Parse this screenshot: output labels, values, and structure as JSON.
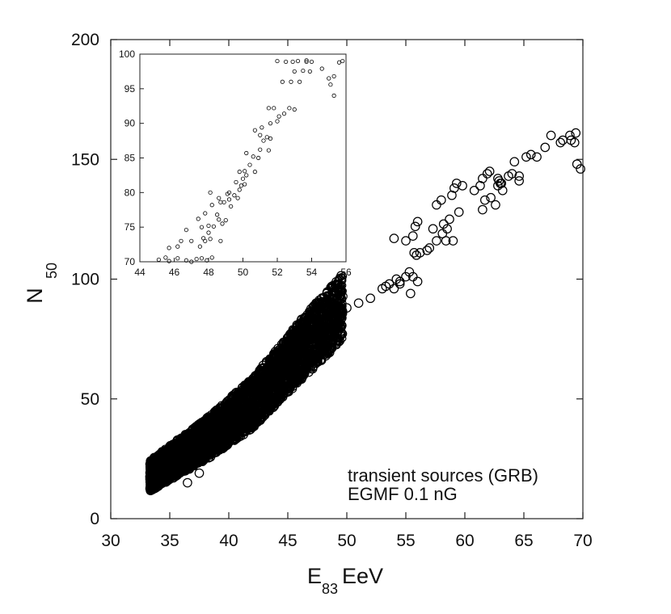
{
  "chart_data": [
    {
      "id": "main",
      "type": "scatter",
      "xlim": [
        30,
        70
      ],
      "ylim": [
        0,
        200
      ],
      "xticks": [
        30,
        35,
        40,
        45,
        50,
        55,
        60,
        65,
        70
      ],
      "yticks": [
        0,
        50,
        100,
        150,
        200
      ],
      "xlabel_main": "E",
      "xlabel_sub": "83",
      "xlabel_unit": " EeV",
      "ylabel_main": "N",
      "ylabel_sub": "50",
      "annotations": [
        "transient sources (GRB)",
        "EGMF 0.1 nG"
      ],
      "marker": "open-circle",
      "dense_region": {
        "description_free": true,
        "x_range": [
          33,
          50
        ],
        "y_range": [
          14,
          92
        ],
        "trend": [
          [
            34,
            20
          ],
          [
            38,
            33
          ],
          [
            42,
            48
          ],
          [
            46,
            70
          ],
          [
            50,
            90
          ]
        ]
      },
      "points": [
        [
          34.0,
          24
        ],
        [
          34.5,
          22
        ],
        [
          35.0,
          28
        ],
        [
          36.5,
          15
        ],
        [
          37.5,
          19
        ],
        [
          38.0,
          26
        ],
        [
          39.0,
          30
        ],
        [
          40.0,
          36
        ],
        [
          41.0,
          42
        ],
        [
          42.0,
          44
        ],
        [
          43.0,
          54
        ],
        [
          44.0,
          59
        ],
        [
          45.0,
          63
        ],
        [
          46.0,
          72
        ],
        [
          47.0,
          77
        ],
        [
          48.0,
          82
        ],
        [
          49.0,
          86
        ],
        [
          50.0,
          88
        ],
        [
          51.0,
          90
        ],
        [
          52.0,
          92
        ],
        [
          53.0,
          96
        ],
        [
          53.3,
          97
        ],
        [
          54.0,
          96
        ],
        [
          54.5,
          98
        ],
        [
          54.5,
          99
        ],
        [
          55.0,
          101
        ],
        [
          55.3,
          103
        ],
        [
          55.4,
          94
        ],
        [
          55.6,
          101
        ],
        [
          56.0,
          99
        ],
        [
          54.2,
          100
        ],
        [
          53.6,
          98
        ],
        [
          54.0,
          117
        ],
        [
          55.0,
          116
        ],
        [
          55.6,
          118
        ],
        [
          55.8,
          122
        ],
        [
          56.0,
          124
        ],
        [
          56.2,
          111
        ],
        [
          55.7,
          111
        ],
        [
          55.9,
          110
        ],
        [
          57.0,
          113
        ],
        [
          56.8,
          112
        ],
        [
          57.3,
          121
        ],
        [
          57.6,
          116
        ],
        [
          58.1,
          119
        ],
        [
          58.4,
          116
        ],
        [
          58.5,
          121
        ],
        [
          59.0,
          116
        ],
        [
          58.2,
          123
        ],
        [
          58.7,
          125
        ],
        [
          57.6,
          131
        ],
        [
          58.0,
          133
        ],
        [
          58.9,
          135
        ],
        [
          59.1,
          138
        ],
        [
          59.8,
          139
        ],
        [
          59.3,
          140
        ],
        [
          59.5,
          128
        ],
        [
          60.8,
          137
        ],
        [
          61.3,
          139
        ],
        [
          61.5,
          142
        ],
        [
          61.9,
          144
        ],
        [
          62.1,
          145
        ],
        [
          62.8,
          139
        ],
        [
          63.1,
          140
        ],
        [
          63.2,
          137
        ],
        [
          63.7,
          143
        ],
        [
          64.0,
          144
        ],
        [
          64.2,
          149
        ],
        [
          64.6,
          141
        ],
        [
          64.6,
          143
        ],
        [
          65.2,
          151
        ],
        [
          65.6,
          152
        ],
        [
          66.1,
          151
        ],
        [
          67.3,
          160
        ],
        [
          66.8,
          155
        ],
        [
          68.1,
          157
        ],
        [
          68.3,
          158
        ],
        [
          68.9,
          160
        ],
        [
          69.0,
          158
        ],
        [
          69.3,
          157
        ],
        [
          69.4,
          161
        ],
        [
          69.5,
          148
        ],
        [
          69.8,
          146
        ],
        [
          61.5,
          129
        ],
        [
          62.6,
          131
        ],
        [
          63.0,
          140
        ],
        [
          62.9,
          141
        ],
        [
          62.2,
          134
        ],
        [
          61.7,
          133
        ],
        [
          62.8,
          142
        ]
      ]
    },
    {
      "id": "inset",
      "type": "scatter",
      "xlim": [
        44,
        56
      ],
      "ylim": [
        70,
        100
      ],
      "xticks": [
        44,
        46,
        48,
        50,
        52,
        54,
        56
      ],
      "yticks": [
        70,
        75,
        80,
        85,
        90,
        95,
        100
      ],
      "marker": "open-circle",
      "points": [
        [
          45.1,
          70.3
        ],
        [
          45.5,
          70.6
        ],
        [
          45.7,
          70.1
        ],
        [
          46.2,
          70.5
        ],
        [
          46.7,
          70.2
        ],
        [
          47.0,
          70.0
        ],
        [
          47.3,
          70.4
        ],
        [
          47.6,
          70.5
        ],
        [
          47.9,
          70.2
        ],
        [
          48.2,
          70.6
        ],
        [
          45.7,
          72.0
        ],
        [
          46.4,
          73.0
        ],
        [
          46.7,
          74.6
        ],
        [
          47.0,
          73.0
        ],
        [
          47.5,
          72.2
        ],
        [
          47.7,
          73.4
        ],
        [
          48.0,
          74.2
        ],
        [
          48.1,
          73.3
        ],
        [
          48.3,
          75.1
        ],
        [
          48.7,
          73.0
        ],
        [
          46.2,
          72.2
        ],
        [
          47.8,
          73.0
        ],
        [
          47.6,
          75.0
        ],
        [
          47.4,
          76.2
        ],
        [
          48.0,
          75.2
        ],
        [
          48.6,
          76.1
        ],
        [
          48.8,
          75.5
        ],
        [
          49.0,
          76.0
        ],
        [
          48.5,
          76.8
        ],
        [
          49.3,
          78.0
        ],
        [
          47.8,
          77.0
        ],
        [
          48.2,
          78.2
        ],
        [
          48.9,
          78.6
        ],
        [
          49.2,
          79.0
        ],
        [
          49.7,
          79.2
        ],
        [
          49.5,
          79.6
        ],
        [
          48.1,
          80.0
        ],
        [
          49.2,
          80.0
        ],
        [
          49.8,
          80.4
        ],
        [
          49.9,
          81.0
        ],
        [
          48.7,
          78.6
        ],
        [
          48.6,
          79.2
        ],
        [
          49.1,
          79.8
        ],
        [
          50.1,
          81.2
        ],
        [
          50.0,
          82.0
        ],
        [
          50.2,
          82.5
        ],
        [
          49.6,
          81.5
        ],
        [
          49.8,
          83.0
        ],
        [
          50.1,
          83.1
        ],
        [
          50.7,
          83.0
        ],
        [
          50.4,
          84.0
        ],
        [
          50.6,
          85.2
        ],
        [
          50.9,
          85.0
        ],
        [
          50.2,
          85.7
        ],
        [
          51.0,
          86.2
        ],
        [
          51.5,
          86.1
        ],
        [
          51.2,
          87.5
        ],
        [
          51.6,
          87.8
        ],
        [
          51.4,
          88.0
        ],
        [
          51.0,
          88.3
        ],
        [
          50.7,
          89.0
        ],
        [
          51.1,
          89.4
        ],
        [
          51.6,
          90.0
        ],
        [
          52.0,
          90.3
        ],
        [
          52.1,
          91.0
        ],
        [
          52.4,
          91.4
        ],
        [
          52.7,
          92.2
        ],
        [
          51.5,
          92.2
        ],
        [
          51.8,
          92.2
        ],
        [
          53.0,
          92.0
        ],
        [
          52.3,
          96.0
        ],
        [
          52.8,
          96.0
        ],
        [
          53.3,
          96.0
        ],
        [
          53.0,
          97.5
        ],
        [
          53.5,
          97.6
        ],
        [
          53.7,
          98.9
        ],
        [
          54.0,
          98.9
        ],
        [
          53.9,
          97.5
        ],
        [
          52.5,
          98.9
        ],
        [
          52.0,
          99.0
        ],
        [
          55.0,
          96.5
        ],
        [
          55.3,
          96.8
        ],
        [
          55.1,
          95.6
        ],
        [
          55.3,
          94.0
        ],
        [
          55.8,
          99.0
        ],
        [
          55.6,
          98.8
        ],
        [
          54.6,
          97.9
        ],
        [
          53.2,
          99.0
        ],
        [
          52.9,
          98.9
        ],
        [
          53.7,
          99.1
        ]
      ]
    }
  ]
}
